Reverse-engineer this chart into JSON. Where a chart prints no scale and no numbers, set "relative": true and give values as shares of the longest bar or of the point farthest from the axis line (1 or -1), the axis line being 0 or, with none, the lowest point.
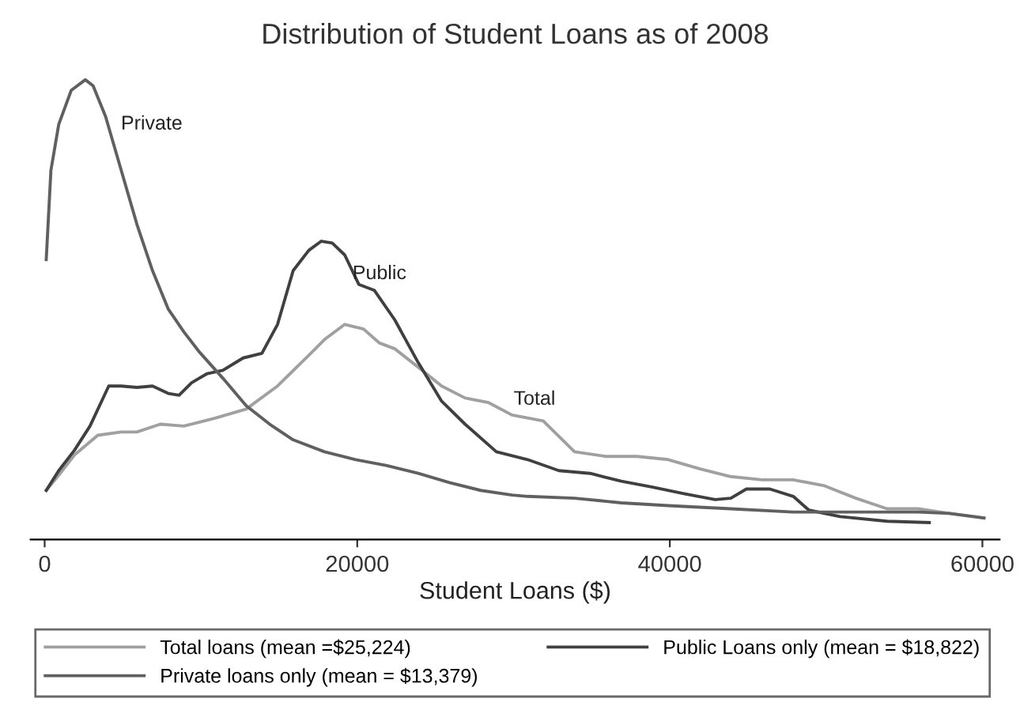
{
  "chart_data": {
    "type": "line",
    "title": "Distribution of Student Loans as of 2008",
    "xlabel": "Student Loans ($)",
    "relative": true,
    "xlim": [
      -900,
      61100
    ],
    "xticks": [
      0,
      20000,
      40000,
      60000
    ],
    "grid": false,
    "legend": "bottom",
    "marker": "none",
    "line_style": "solid",
    "annotations": [
      "Private",
      "Public",
      "Total"
    ],
    "series": [
      {
        "name": "Total loans (mean =$25,224)",
        "color": "#a0a0a0",
        "x": [
          100,
          900,
          1900,
          3400,
          4900,
          5900,
          7400,
          8900,
          10900,
          12900,
          14900,
          16900,
          17900,
          19200,
          20400,
          21400,
          22400,
          23900,
          25400,
          26900,
          28400,
          29900,
          31900,
          33900,
          35900,
          37900,
          39900,
          41900,
          43900,
          45900,
          47900,
          49900,
          51900,
          53900,
          55900,
          57900,
          60100
        ],
        "values": [
          0.107,
          0.14,
          0.184,
          0.227,
          0.234,
          0.234,
          0.251,
          0.247,
          0.264,
          0.284,
          0.334,
          0.401,
          0.435,
          0.468,
          0.458,
          0.428,
          0.415,
          0.375,
          0.334,
          0.308,
          0.298,
          0.271,
          0.258,
          0.191,
          0.181,
          0.181,
          0.174,
          0.154,
          0.137,
          0.13,
          0.13,
          0.117,
          0.09,
          0.067,
          0.067,
          0.057,
          0.047
        ]
      },
      {
        "name": "Public Loans only (mean = $18,822)",
        "color": "#404040",
        "x": [
          100,
          900,
          1900,
          2900,
          4100,
          4900,
          5900,
          6900,
          7900,
          8600,
          9400,
          10400,
          11400,
          12700,
          13900,
          14900,
          15900,
          16900,
          17700,
          18400,
          19200,
          20100,
          21100,
          22400,
          23900,
          25400,
          26900,
          28900,
          30900,
          32900,
          34900,
          36900,
          38900,
          40900,
          42900,
          43900,
          44900,
          46400,
          47900,
          48900,
          50900,
          53900,
          56600
        ],
        "values": [
          0.107,
          0.15,
          0.194,
          0.247,
          0.334,
          0.334,
          0.331,
          0.334,
          0.318,
          0.314,
          0.341,
          0.361,
          0.368,
          0.395,
          0.405,
          0.468,
          0.585,
          0.629,
          0.649,
          0.645,
          0.619,
          0.555,
          0.542,
          0.478,
          0.385,
          0.301,
          0.251,
          0.191,
          0.174,
          0.15,
          0.144,
          0.127,
          0.114,
          0.1,
          0.087,
          0.09,
          0.11,
          0.11,
          0.094,
          0.064,
          0.05,
          0.04,
          0.037
        ]
      },
      {
        "name": "Private loans only (mean = $13,379)",
        "color": "#606060",
        "x": [
          100,
          400,
          900,
          1700,
          2600,
          3100,
          3900,
          4900,
          5900,
          6900,
          7900,
          8900,
          9900,
          11400,
          12900,
          14400,
          15900,
          17900,
          19900,
          21900,
          23900,
          25900,
          27900,
          29900,
          30900,
          33900,
          36900,
          39900,
          43900,
          47900,
          51900,
          55900,
          57900,
          60100
        ],
        "values": [
          0.609,
          0.803,
          0.903,
          0.977,
          1,
          0.987,
          0.92,
          0.803,
          0.686,
          0.585,
          0.502,
          0.452,
          0.408,
          0.351,
          0.291,
          0.251,
          0.217,
          0.191,
          0.174,
          0.161,
          0.144,
          0.124,
          0.107,
          0.097,
          0.094,
          0.09,
          0.08,
          0.074,
          0.067,
          0.06,
          0.06,
          0.06,
          0.057,
          0.047
        ]
      }
    ]
  }
}
